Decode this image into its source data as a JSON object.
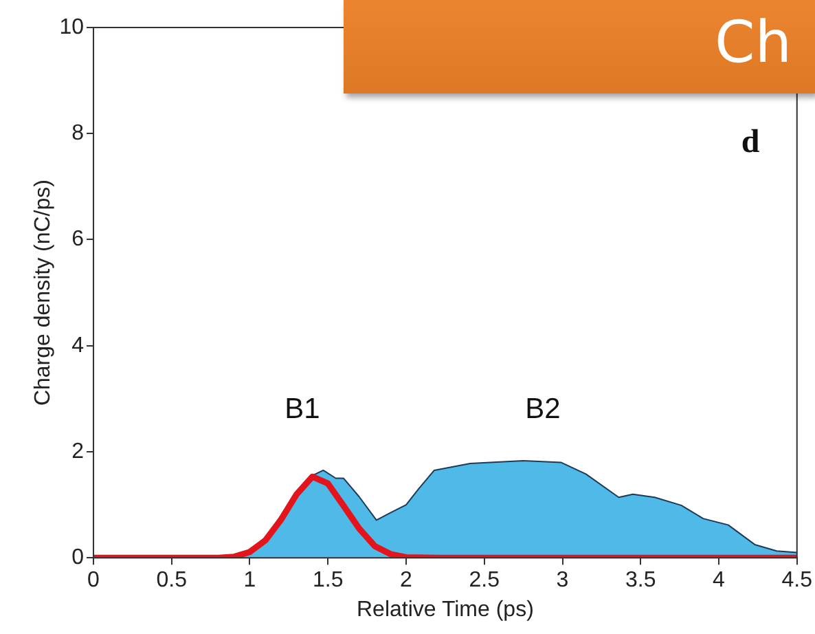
{
  "chart_data": {
    "type": "area",
    "xlabel": "Relative Time (ps)",
    "ylabel": "Charge density (nC/ps)",
    "xlim": [
      0,
      4.5
    ],
    "ylim": [
      0,
      10
    ],
    "xticks": [
      0,
      0.5,
      1,
      1.5,
      2,
      2.5,
      3,
      3.5,
      4,
      4.5
    ],
    "yticks": [
      0,
      2,
      4,
      6,
      8,
      10
    ],
    "grid": false,
    "legend": false,
    "marker": "none",
    "series": [
      {
        "color": "#4fb9e8",
        "x": [
          0,
          0.5,
          0.8,
          0.9,
          1.0,
          1.1,
          1.2,
          1.3,
          1.4,
          1.47,
          1.55,
          1.6,
          1.7,
          1.81,
          1.9,
          2.0,
          2.08,
          2.18,
          2.41,
          2.75,
          2.99,
          3.15,
          3.36,
          3.45,
          3.59,
          3.76,
          3.9,
          4.06,
          4.23,
          4.37,
          4.5
        ],
        "values": [
          0,
          0,
          0,
          0.02,
          0.15,
          0.38,
          0.8,
          1.25,
          1.55,
          1.65,
          1.5,
          1.5,
          1.15,
          0.71,
          0.85,
          1.0,
          1.3,
          1.65,
          1.78,
          1.83,
          1.8,
          1.58,
          1.14,
          1.2,
          1.14,
          0.99,
          0.74,
          0.62,
          0.25,
          0.13,
          0.1
        ]
      },
      {
        "type": "line",
        "color": "#e3141c",
        "x": [
          0,
          0.5,
          0.8,
          0.9,
          1.0,
          1.1,
          1.2,
          1.3,
          1.4,
          1.5,
          1.6,
          1.7,
          1.8,
          1.9,
          2.0,
          2.2,
          3,
          4,
          4.5
        ],
        "values": [
          0,
          0,
          0,
          0.02,
          0.11,
          0.33,
          0.72,
          1.2,
          1.53,
          1.4,
          0.98,
          0.55,
          0.22,
          0.07,
          0.01,
          0,
          0,
          0,
          0
        ]
      }
    ],
    "annotations": [
      "B1",
      "B2",
      "d",
      "Ch"
    ]
  }
}
